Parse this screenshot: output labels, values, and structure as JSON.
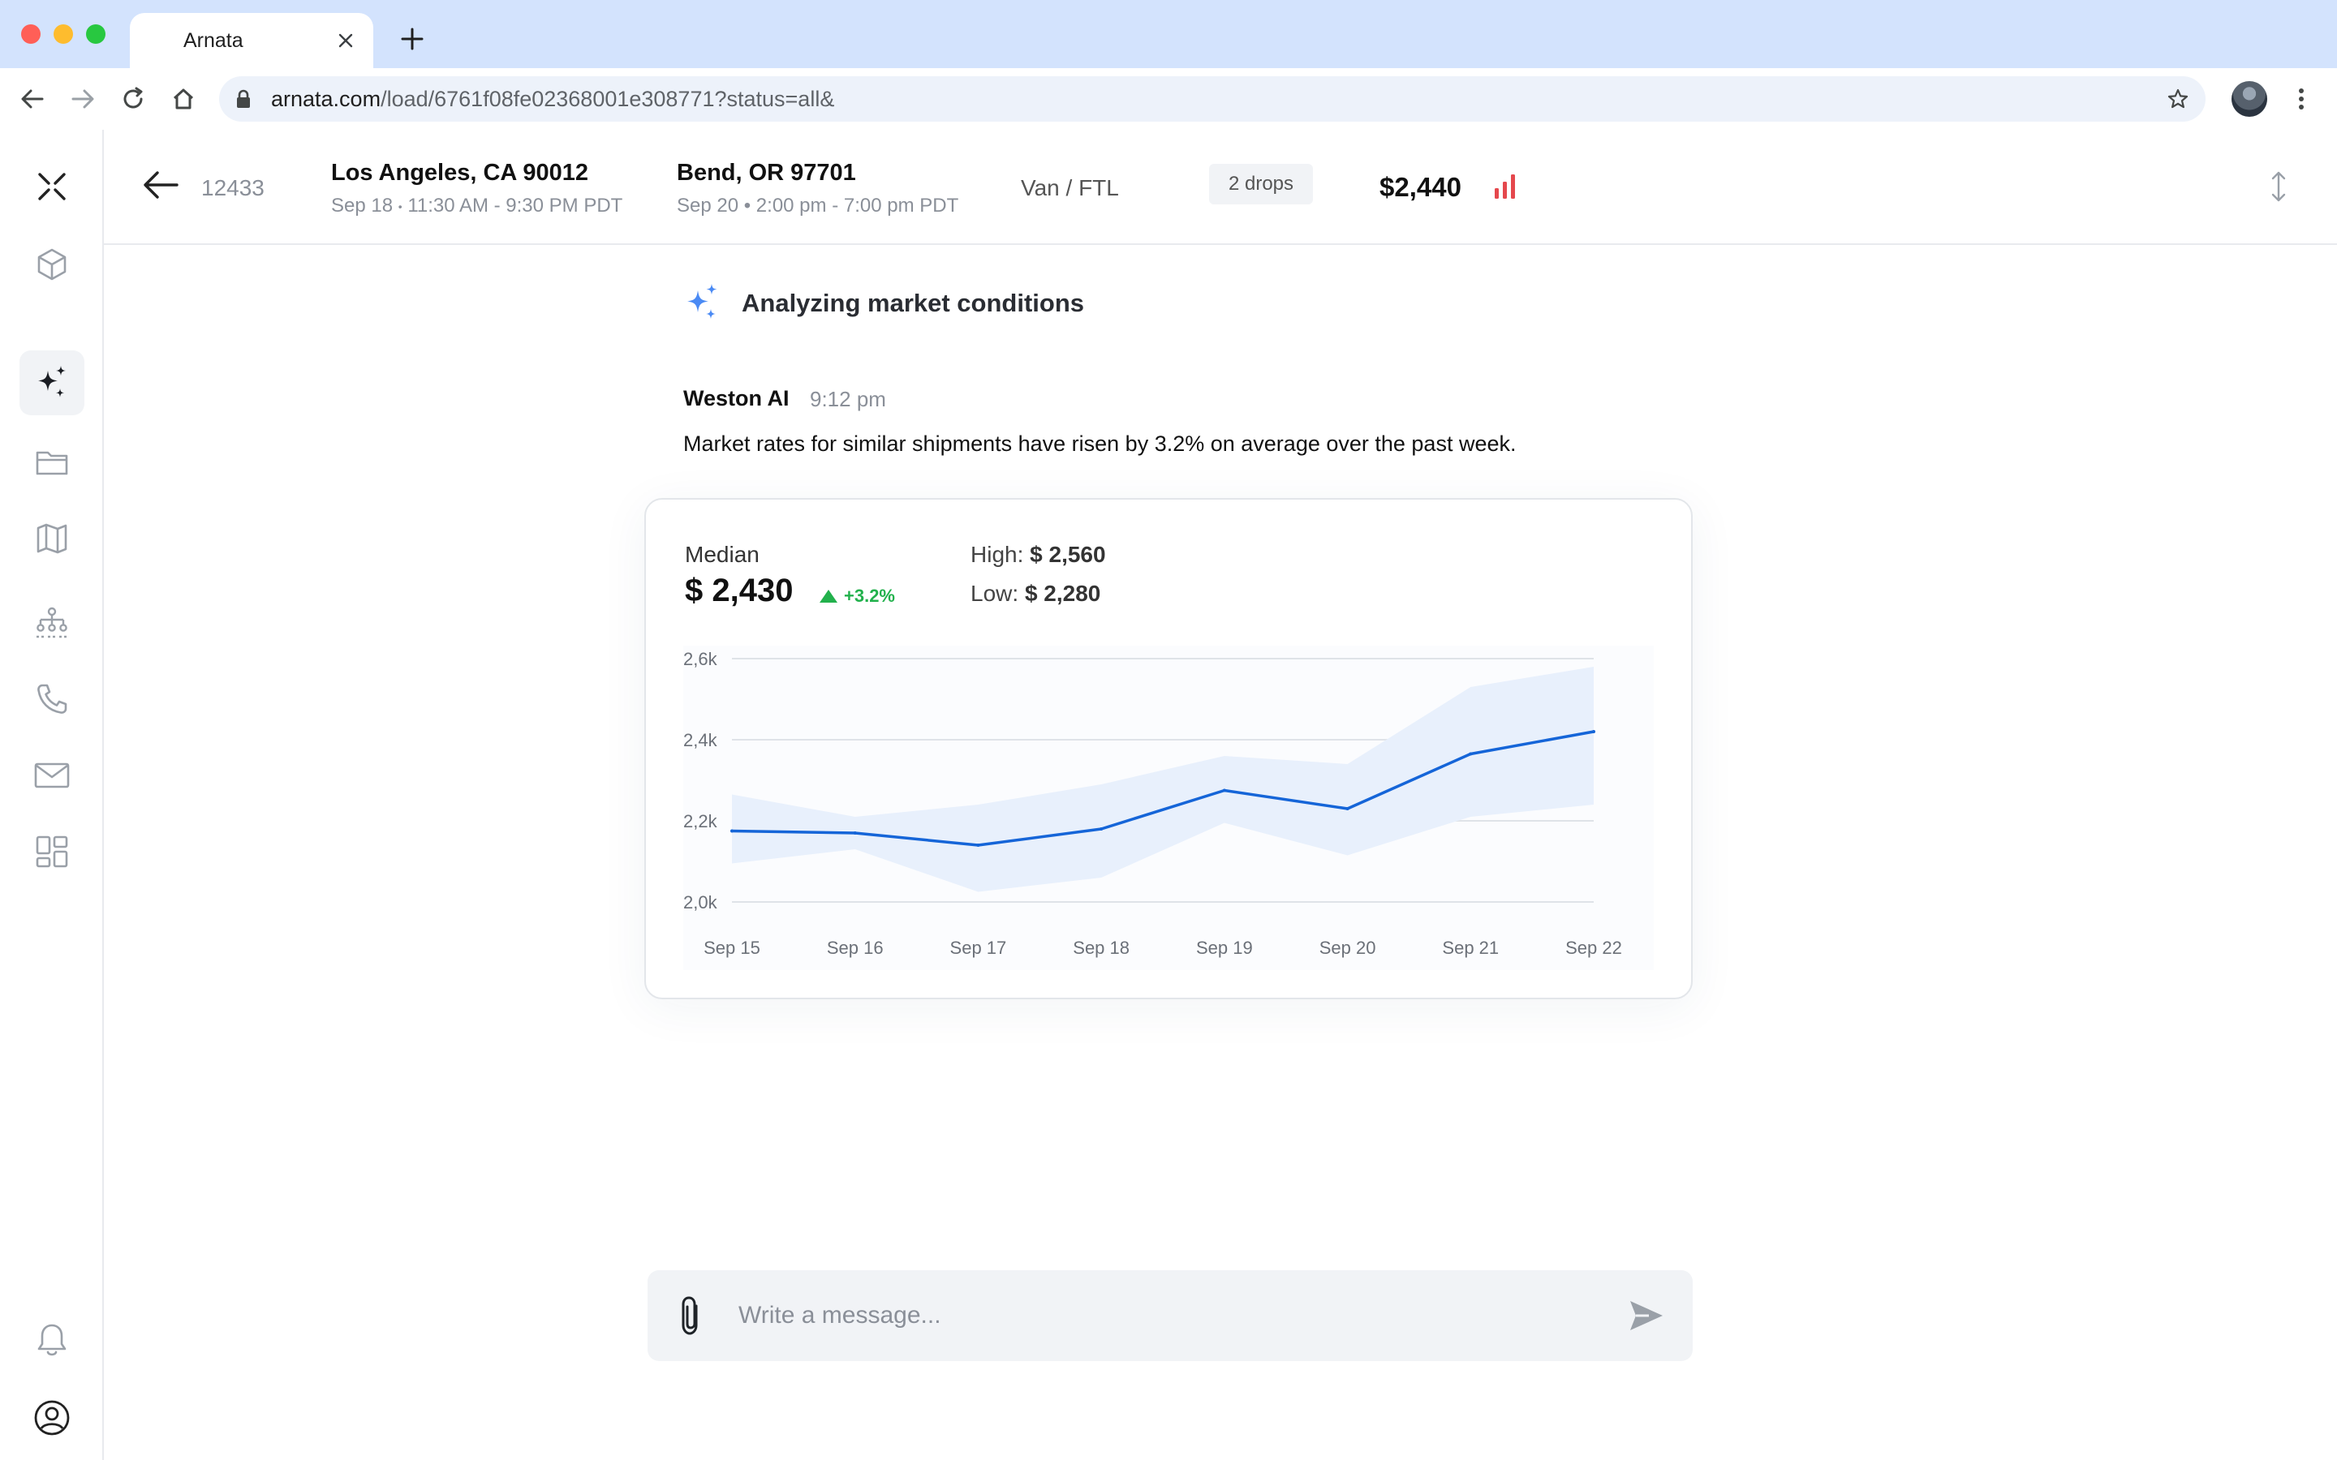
{
  "browser": {
    "tab_title": "Arnata",
    "url_domain": "arnata.com",
    "url_path": "/load/6761f08fe02368001e308771?status=all&"
  },
  "load": {
    "id": "12433",
    "origin": {
      "city": "Los Angeles, CA 90012",
      "date": "Sep 18",
      "window": "11:30 AM - 9:30 PM PDT"
    },
    "destination": {
      "city": "Bend, OR 97701",
      "window": "Sep 20 • 2:00 pm - 7:00 pm PDT"
    },
    "equipment": "Van / FTL",
    "drops": "2 drops",
    "price": "$2,440"
  },
  "chat": {
    "status": "Analyzing market conditions",
    "message": {
      "author": "Weston AI",
      "time": "9:12 pm",
      "text": "Market rates for similar shipments have risen by 3.2% on average over the past week."
    },
    "card": {
      "median_label": "Median",
      "median_value": "$ 2,430",
      "delta": "+3.2%",
      "high_label": "High:",
      "high_value": "$ 2,560",
      "low_label": "Low:",
      "low_value": "$ 2,280"
    }
  },
  "composer": {
    "placeholder": "Write a message..."
  },
  "colors": {
    "accent": "#1565d8",
    "band": "#e8f0fc",
    "positive": "#22b14c",
    "price_bars": "#e5484d"
  },
  "sidebar_icons": [
    "logo-x-icon",
    "package-icon",
    "sparkle-ai-icon",
    "folder-icon",
    "map-icon",
    "network-icon",
    "phone-icon",
    "mail-icon",
    "dashboard-icon",
    "bell-icon",
    "user-icon"
  ],
  "chart_data": {
    "type": "line",
    "x": [
      "Sep 15",
      "Sep 16",
      "Sep 17",
      "Sep 18",
      "Sep 19",
      "Sep 20",
      "Sep 21",
      "Sep 22"
    ],
    "y_ticks": [
      "2,6k",
      "2,4k",
      "2,2k",
      "2,0k"
    ],
    "ylim": [
      2000,
      2600
    ],
    "series": [
      {
        "values": [
          2175,
          2170,
          2140,
          2180,
          2275,
          2230,
          2365,
          2420
        ]
      }
    ],
    "band": {
      "upper": [
        2265,
        2210,
        2240,
        2290,
        2360,
        2340,
        2530,
        2580
      ],
      "lower": [
        2095,
        2130,
        2025,
        2060,
        2195,
        2115,
        2210,
        2240
      ]
    },
    "grid": true
  }
}
